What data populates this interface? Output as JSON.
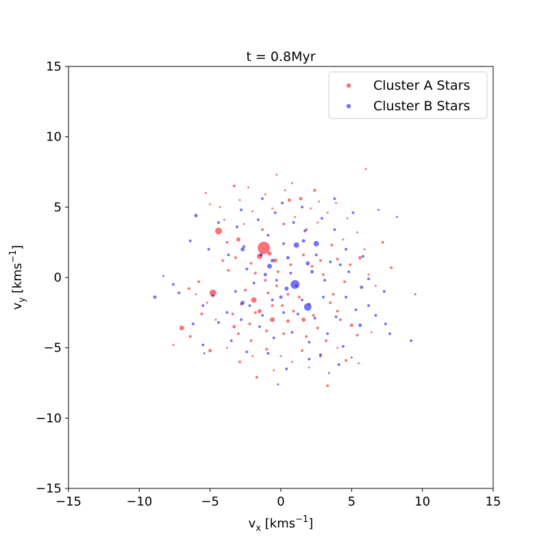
{
  "chart_data": {
    "type": "scatter",
    "title": "t = 0.8Myr",
    "xlabel": {
      "main": "v",
      "sub": "x",
      "rest": " [kms",
      "sup": "−1",
      "end": "]"
    },
    "ylabel": {
      "main": "v",
      "sub": "y",
      "rest": " [kms",
      "sup": "−1",
      "end": "]"
    },
    "xlim": [
      -15,
      15
    ],
    "ylim": [
      -15,
      15
    ],
    "xticks": [
      -15,
      -10,
      -5,
      0,
      5,
      10,
      15
    ],
    "yticks": [
      -15,
      -10,
      -5,
      0,
      5,
      10,
      15
    ],
    "xtick_labels": [
      "−15",
      "−10",
      "−5",
      "0",
      "5",
      "10",
      "15"
    ],
    "ytick_labels": [
      "−15",
      "−10",
      "−5",
      "0",
      "5",
      "10",
      "15"
    ],
    "grid": false,
    "legend_position": "upper right",
    "series": [
      {
        "name": "Cluster A Stars",
        "color": "#ff0000",
        "points": [
          [
            -1.2,
            2.1,
            9
          ],
          [
            -4.4,
            3.3,
            5
          ],
          [
            -4.8,
            -1.1,
            5
          ],
          [
            -7.0,
            -3.6,
            3.5
          ],
          [
            -3.0,
            2.7,
            3
          ],
          [
            -1.9,
            -1.6,
            4
          ],
          [
            -1.5,
            1.5,
            4
          ],
          [
            -0.6,
            -3.0,
            3.5
          ],
          [
            -0.8,
            1.7,
            3
          ],
          [
            -0.4,
            1.2,
            3
          ],
          [
            1.4,
            5.6,
            2.5
          ],
          [
            2.4,
            6.2,
            2.2
          ],
          [
            -3.3,
            6.5,
            2
          ],
          [
            0.6,
            5.5,
            2.5
          ],
          [
            6.0,
            7.7,
            1.5
          ],
          [
            -0.3,
            7.3,
            1.5
          ],
          [
            0.8,
            6.7,
            1.5
          ],
          [
            -2.3,
            6.4,
            1.5
          ],
          [
            -5.3,
            6.0,
            1.5
          ],
          [
            1.6,
            -3.0,
            3
          ],
          [
            0.5,
            -3.1,
            2.5
          ],
          [
            -1.5,
            -2.4,
            3
          ],
          [
            -3.3,
            -3.5,
            2.5
          ],
          [
            -7.6,
            -4.8,
            1.5
          ],
          [
            -5.0,
            -5.2,
            2.5
          ],
          [
            -2.9,
            -6.0,
            2
          ],
          [
            -1.7,
            -7.1,
            2
          ],
          [
            3.3,
            -7.7,
            2
          ],
          [
            2.8,
            -5.6,
            2
          ],
          [
            4.6,
            -5.9,
            2
          ],
          [
            5.5,
            -6.1,
            1.5
          ],
          [
            5.0,
            -3.4,
            2.5
          ],
          [
            5.4,
            -4.1,
            2
          ],
          [
            5.6,
            1.4,
            2.5
          ],
          [
            7.8,
            0.7,
            2
          ],
          [
            7.2,
            2.5,
            2
          ],
          [
            4.0,
            1.3,
            2
          ],
          [
            3.6,
            2.3,
            2
          ],
          [
            -5.8,
            -0.3,
            2
          ],
          [
            -6.5,
            -0.8,
            2
          ],
          [
            -5.6,
            -2.6,
            2
          ],
          [
            -6.4,
            -4.2,
            2
          ],
          [
            -4.1,
            1.2,
            2
          ],
          [
            -3.7,
            0.5,
            2
          ],
          [
            -3.8,
            2.5,
            2
          ],
          [
            -4.0,
            4.1,
            1.5
          ],
          [
            -5.0,
            5.2,
            1.5
          ],
          [
            -2.0,
            4.7,
            1.5
          ],
          [
            -1.3,
            3.4,
            2
          ],
          [
            0.2,
            3.8,
            2
          ],
          [
            1.8,
            3.4,
            2
          ],
          [
            2.1,
            4.9,
            1.5
          ],
          [
            3.3,
            4.6,
            1.5
          ],
          [
            2.8,
            1.2,
            2
          ],
          [
            3.0,
            0.2,
            2
          ],
          [
            3.7,
            -1.2,
            2
          ],
          [
            4.0,
            -2.4,
            2
          ],
          [
            4.2,
            -3.0,
            2
          ],
          [
            2.6,
            -3.6,
            2
          ],
          [
            1.8,
            -4.2,
            2
          ],
          [
            0.2,
            -4.0,
            2
          ],
          [
            -1.0,
            -3.8,
            2
          ],
          [
            -2.1,
            -4.5,
            2
          ],
          [
            -3.0,
            -4.0,
            2
          ],
          [
            -1.0,
            -5.1,
            2
          ],
          [
            0.0,
            -5.6,
            1.5
          ],
          [
            1.5,
            -5.2,
            2
          ],
          [
            3.2,
            -4.5,
            2
          ],
          [
            2.0,
            -1.9,
            2
          ],
          [
            1.3,
            -1.4,
            2
          ],
          [
            0.5,
            -1.2,
            2
          ],
          [
            -0.3,
            -0.6,
            2
          ],
          [
            -1.1,
            -0.2,
            2
          ],
          [
            -1.8,
            0.3,
            2
          ],
          [
            -2.5,
            -0.9,
            2
          ],
          [
            -2.8,
            -1.9,
            2
          ],
          [
            -3.4,
            -2.6,
            2
          ],
          [
            -0.6,
            -2.0,
            2
          ],
          [
            0.9,
            -2.4,
            2
          ],
          [
            2.3,
            -2.7,
            2
          ],
          [
            3.5,
            -1.8,
            2
          ],
          [
            4.5,
            -0.3,
            2
          ],
          [
            4.9,
            0.9,
            2
          ],
          [
            4.4,
            2.7,
            1.5
          ],
          [
            2.6,
            3.9,
            1.5
          ],
          [
            1.0,
            4.3,
            1.5
          ],
          [
            -0.6,
            4.9,
            1.5
          ],
          [
            -2.6,
            3.8,
            1.5
          ],
          [
            -3.2,
            1.4,
            2
          ],
          [
            -2.1,
            1.0,
            2
          ],
          [
            -0.2,
            0.4,
            2
          ],
          [
            0.7,
            0.9,
            2
          ],
          [
            1.6,
            1.6,
            2
          ],
          [
            2.2,
            0.8,
            2
          ],
          [
            1.1,
            -0.6,
            2
          ],
          [
            -0.9,
            -1.1,
            2
          ],
          [
            6.4,
            -3.9,
            1.5
          ],
          [
            6.7,
            -0.6,
            1.5
          ],
          [
            6.2,
            0.2,
            1.5
          ],
          [
            -6.0,
            -1.2,
            1.5
          ],
          [
            -5.2,
            -1.8,
            1.5
          ],
          [
            -4.6,
            -3.0,
            1.5
          ],
          [
            -2.2,
            -3.3,
            2
          ],
          [
            -1.8,
            -2.5,
            2
          ],
          [
            0.1,
            -2.0,
            2
          ],
          [
            -4.3,
            5.0,
            1.5
          ],
          [
            -2.9,
            5.5,
            1.5
          ],
          [
            -1.1,
            5.9,
            1.5
          ],
          [
            0.3,
            6.2,
            1.5
          ],
          [
            2.7,
            5.4,
            1.5
          ],
          [
            3.9,
            5.3,
            1.5
          ],
          [
            4.7,
            4.2,
            1.5
          ],
          [
            5.4,
            3.2,
            1.5
          ],
          [
            5.9,
            2.0,
            1.5
          ],
          [
            -2.0,
            -5.6,
            1.5
          ],
          [
            -0.5,
            -6.6,
            1.5
          ],
          [
            0.8,
            -6.0,
            1.5
          ],
          [
            2.0,
            -6.4,
            1.5
          ],
          [
            4.0,
            -5.0,
            1.5
          ],
          [
            -3.8,
            -5.0,
            1.5
          ]
        ]
      },
      {
        "name": "Cluster B Stars",
        "color": "#0000ff",
        "points": [
          [
            1.0,
            -0.5,
            6.5
          ],
          [
            1.9,
            -2.1,
            5.5
          ],
          [
            2.5,
            2.4,
            4
          ],
          [
            1.1,
            2.3,
            4
          ],
          [
            -0.8,
            0.8,
            3.5
          ],
          [
            -2.7,
            -1.8,
            3
          ],
          [
            -2.7,
            2.0,
            3
          ],
          [
            0.4,
            -0.8,
            3
          ],
          [
            1.9,
            1.0,
            3
          ],
          [
            5.6,
            -3.4,
            2.5
          ],
          [
            -6.0,
            4.4,
            2.5
          ],
          [
            -8.9,
            -1.4,
            2.5
          ],
          [
            9.2,
            -4.5,
            2
          ],
          [
            9.5,
            -1.2,
            1.5
          ],
          [
            8.2,
            4.3,
            1.5
          ],
          [
            6.9,
            4.8,
            1.5
          ],
          [
            -8.3,
            0.1,
            1.5
          ],
          [
            -7.6,
            -0.5,
            2
          ],
          [
            -5.5,
            -4.8,
            2
          ],
          [
            -5.4,
            -5.4,
            1.5
          ],
          [
            -0.2,
            -7.6,
            1.5
          ],
          [
            3.4,
            -6.8,
            1.5
          ],
          [
            2.8,
            -5.5,
            2
          ],
          [
            5.0,
            -5.7,
            1.5
          ],
          [
            7.4,
            -3.3,
            2
          ],
          [
            7.7,
            -4.0,
            2
          ],
          [
            6.2,
            -2.0,
            2
          ],
          [
            5.7,
            -0.7,
            2.5
          ],
          [
            4.6,
            -1.4,
            2
          ],
          [
            3.1,
            -0.2,
            2
          ],
          [
            2.2,
            0.4,
            2.5
          ],
          [
            0.5,
            1.4,
            2.5
          ],
          [
            -0.6,
            1.2,
            2.5
          ],
          [
            -2.6,
            2.2,
            2
          ],
          [
            -3.7,
            1.6,
            2
          ],
          [
            -4.8,
            -1.3,
            2
          ],
          [
            -1.4,
            1.6,
            2.5
          ],
          [
            -0.9,
            3.0,
            2
          ],
          [
            0.2,
            2.4,
            2
          ],
          [
            1.7,
            3.3,
            2
          ],
          [
            2.5,
            1.6,
            2
          ],
          [
            3.0,
            -1.4,
            2
          ],
          [
            3.9,
            -2.8,
            2
          ],
          [
            2.4,
            -2.9,
            2
          ],
          [
            1.2,
            -2.6,
            2
          ],
          [
            0.2,
            -2.5,
            2
          ],
          [
            -1.3,
            -2.7,
            2
          ],
          [
            -2.2,
            -2.0,
            2
          ],
          [
            -3.2,
            -1.0,
            2
          ],
          [
            -2.4,
            0.6,
            2
          ],
          [
            -1.9,
            -0.4,
            2
          ],
          [
            -0.3,
            -0.2,
            2
          ],
          [
            0.7,
            0.3,
            2
          ],
          [
            1.5,
            -1.6,
            2
          ],
          [
            -0.6,
            -1.6,
            2
          ],
          [
            -1.5,
            -3.5,
            2
          ],
          [
            -0.5,
            -4.3,
            2
          ],
          [
            0.8,
            -3.9,
            2
          ],
          [
            2.0,
            -4.6,
            2
          ],
          [
            3.3,
            -4.0,
            2
          ],
          [
            4.4,
            -4.9,
            2
          ],
          [
            -2.4,
            -5.3,
            2
          ],
          [
            -3.5,
            -4.5,
            2
          ],
          [
            -4.4,
            -3.2,
            2
          ],
          [
            -5.5,
            -2.0,
            2
          ],
          [
            -6.4,
            2.6,
            2
          ],
          [
            -5.1,
            2.0,
            2
          ],
          [
            -4.4,
            3.9,
            2
          ],
          [
            -3.1,
            3.6,
            2
          ],
          [
            -1.6,
            4.1,
            2
          ],
          [
            -0.4,
            4.6,
            2
          ],
          [
            0.9,
            3.9,
            2
          ],
          [
            3.8,
            3.4,
            2
          ],
          [
            4.6,
            2.0,
            2
          ],
          [
            3.5,
            1.1,
            2
          ],
          [
            4.8,
            0.4,
            2
          ],
          [
            5.8,
            1.5,
            2
          ],
          [
            6.2,
            -0.1,
            2
          ],
          [
            7.3,
            -1.0,
            2
          ],
          [
            6.7,
            -2.7,
            2
          ],
          [
            -7.2,
            -1.1,
            2
          ],
          [
            -6.2,
            -3.3,
            2
          ],
          [
            -3.8,
            -2.5,
            2
          ],
          [
            -2.8,
            -3.0,
            2
          ],
          [
            -0.9,
            -5.4,
            2
          ],
          [
            0.4,
            -6.5,
            2
          ],
          [
            2.0,
            -5.8,
            2
          ],
          [
            4.1,
            -6.2,
            2
          ],
          [
            5.3,
            -2.3,
            2
          ],
          [
            4.2,
            0.9,
            2
          ],
          [
            2.9,
            4.2,
            2
          ],
          [
            1.5,
            5.0,
            2
          ],
          [
            0.1,
            5.3,
            2
          ],
          [
            -1.3,
            5.6,
            2
          ],
          [
            -2.8,
            4.8,
            2
          ],
          [
            3.8,
            5.6,
            2
          ],
          [
            5.1,
            4.6,
            2
          ],
          [
            1.6,
            2.6,
            2.5
          ],
          [
            -1.1,
            0.2,
            2.5
          ],
          [
            0.0,
            -1.4,
            2.5
          ]
        ]
      }
    ]
  }
}
